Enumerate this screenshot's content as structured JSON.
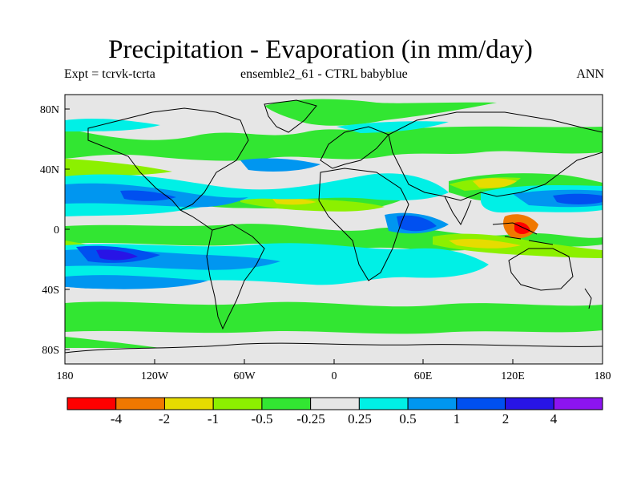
{
  "title": "Precipitation - Evaporation (in mm/day)",
  "subtitle_left": "Expt = tcrvk-tcrta",
  "subtitle_center": "ensemble2_61 - CTRL babyblue",
  "subtitle_right": "ANN",
  "map": {
    "projection": "cylindrical equidistant",
    "lon_range": [
      -180,
      180
    ],
    "lat_range": [
      -90,
      90
    ],
    "x_tick_labels": [
      "180",
      "120W",
      "60W",
      "0",
      "60E",
      "120E",
      "180"
    ],
    "y_tick_labels": [
      "80N",
      "40N",
      "0",
      "40S",
      "80S"
    ],
    "background_color": "#e6e6e6",
    "coastline_color": "#000000"
  },
  "colorbar": {
    "colors": [
      "#ff0000",
      "#f07800",
      "#e6dc00",
      "#8cf000",
      "#32e632",
      "#e6e6e6",
      "#00f0e6",
      "#0096f0",
      "#0050f0",
      "#2814e6",
      "#8c14f0"
    ],
    "labels": [
      "-4",
      "-2",
      "-1",
      "-0.5",
      "-0.25",
      "0.25",
      "0.5",
      "1",
      "2",
      "4"
    ]
  }
}
